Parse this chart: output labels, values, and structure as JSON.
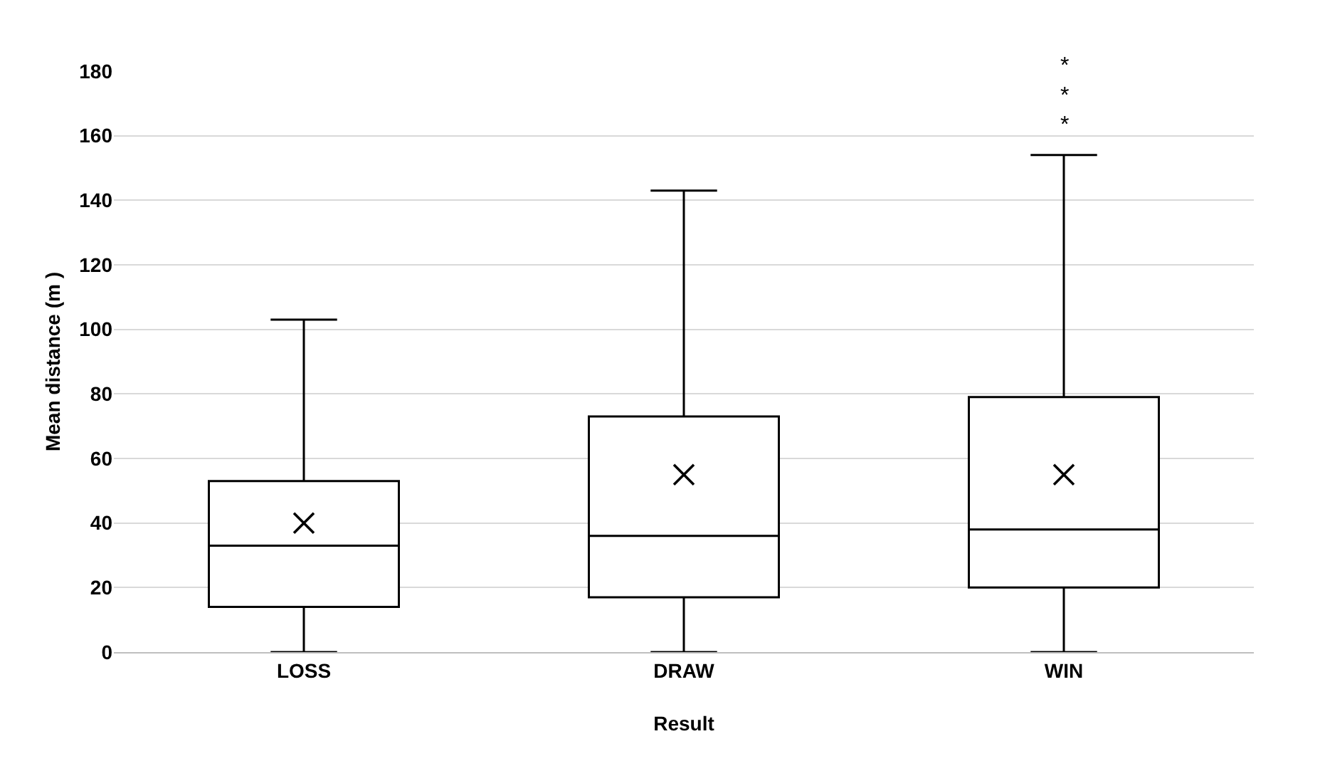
{
  "chart_data": {
    "type": "box",
    "xlabel": "Result",
    "ylabel": "Mean distance (m )",
    "categories": [
      "LOSS",
      "DRAW",
      "WIN"
    ],
    "boxes": [
      {
        "low": 0,
        "q1": 14,
        "median": 33,
        "q3": 53,
        "high": 103,
        "mean": 40
      },
      {
        "low": 0,
        "q1": 17,
        "median": 36,
        "q3": 73,
        "high": 143,
        "mean": 55
      },
      {
        "low": 0,
        "q1": 20,
        "median": 38,
        "q3": 79,
        "high": 154,
        "mean": 55
      }
    ],
    "color": "#000000",
    "ylim": [
      0,
      180
    ],
    "yticks": [
      0,
      20,
      40,
      60,
      80,
      100,
      120,
      140,
      160,
      180
    ],
    "grid": "y",
    "marker": "cross",
    "annotations": [
      "***"
    ]
  }
}
